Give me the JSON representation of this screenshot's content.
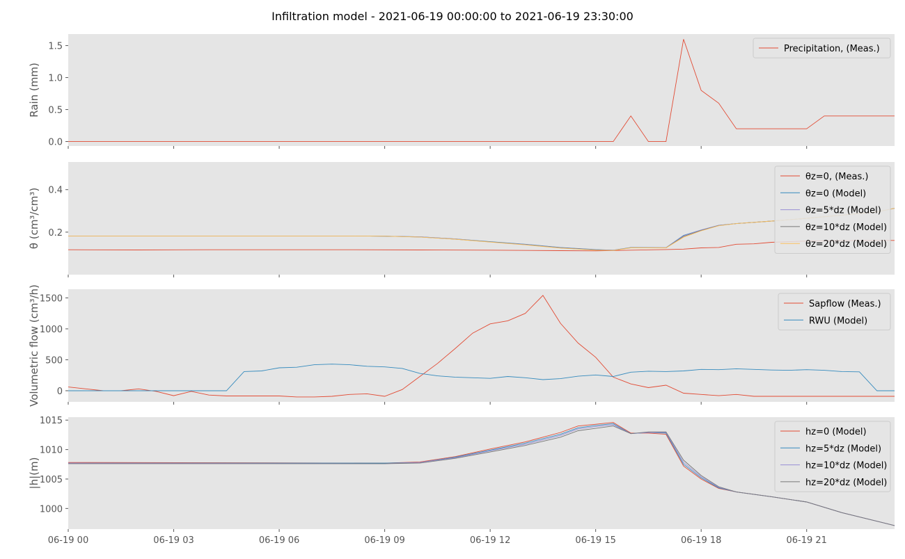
{
  "figure": {
    "title": "Infiltration model - 2021-06-19 00:00:00 to 2021-06-19 23:30:00",
    "x_tick_labels": [
      "06-19 00",
      "06-19 03",
      "06-19 06",
      "06-19 09",
      "06-19 12",
      "06-19 15",
      "06-19 18",
      "06-19 21"
    ]
  },
  "chart_data": [
    {
      "type": "line",
      "ylabel": "Rain (mm)",
      "ylim": [
        -0.07,
        1.68
      ],
      "yticks": [
        0.0,
        0.5,
        1.0,
        1.5
      ],
      "ytick_labels": [
        "0.0",
        "0.5",
        "1.0",
        "1.5"
      ],
      "grid": false,
      "legend_position": "top-right",
      "series": [
        {
          "name": "Precipitation, (Meas.)",
          "color": "#e24a33",
          "x_hours": [
            0,
            15.5,
            16,
            16.5,
            17,
            17.5,
            18,
            18.5,
            19,
            19.5,
            20,
            20.5,
            21,
            21.5,
            22,
            22.5,
            23,
            23.5
          ],
          "values": [
            0,
            0,
            0.4,
            0,
            0,
            1.6,
            0.8,
            0.6,
            0.2,
            0.2,
            0.2,
            0.2,
            0.2,
            0.4,
            0.4,
            0.4,
            0.4,
            0.4
          ]
        }
      ]
    },
    {
      "type": "line",
      "ylabel": "θ (cm³/cm³)",
      "ylim": [
        0.0,
        0.53
      ],
      "yticks": [
        0.2,
        0.4
      ],
      "ytick_labels": [
        "0.2",
        "0.4"
      ],
      "grid": false,
      "legend_position": "top-right",
      "series": [
        {
          "name": "θz=0, (Meas.)",
          "color": "#e24a33",
          "x_hours": [
            0,
            2,
            4,
            6,
            8,
            10,
            12,
            14,
            15,
            16,
            17,
            17.5,
            18,
            18.5,
            19,
            19.5,
            20,
            21,
            22,
            23.5
          ],
          "values": [
            0.117,
            0.116,
            0.117,
            0.117,
            0.117,
            0.116,
            0.115,
            0.113,
            0.112,
            0.115,
            0.118,
            0.12,
            0.126,
            0.128,
            0.143,
            0.145,
            0.152,
            0.158,
            0.16,
            0.161
          ]
        },
        {
          "name": "θz=0 (Model)",
          "color": "#348abd",
          "x_hours": [
            0,
            2,
            4,
            6,
            8,
            9,
            10,
            11,
            12,
            13,
            14,
            15,
            15.5,
            16,
            17,
            17.5,
            18,
            18.5,
            19,
            20,
            21,
            22,
            23,
            23.5
          ],
          "values": [
            0.182,
            0.182,
            0.182,
            0.182,
            0.182,
            0.181,
            0.178,
            0.168,
            0.155,
            0.143,
            0.128,
            0.118,
            0.115,
            0.128,
            0.127,
            0.185,
            0.21,
            0.232,
            0.24,
            0.252,
            0.265,
            0.28,
            0.295,
            0.312
          ]
        },
        {
          "name": "θz=5*dz (Model)",
          "color": "#988ed5",
          "x_hours": [
            0,
            2,
            4,
            6,
            8,
            9,
            10,
            11,
            12,
            13,
            14,
            15,
            15.5,
            16,
            17,
            17.5,
            18,
            18.5,
            19,
            20,
            21,
            22,
            23,
            23.5
          ],
          "values": [
            0.182,
            0.182,
            0.182,
            0.182,
            0.182,
            0.181,
            0.178,
            0.168,
            0.154,
            0.142,
            0.127,
            0.117,
            0.115,
            0.127,
            0.127,
            0.183,
            0.21,
            0.232,
            0.24,
            0.252,
            0.265,
            0.28,
            0.295,
            0.312
          ]
        },
        {
          "name": "θz=10*dz (Model)",
          "color": "#777777",
          "x_hours": [
            0,
            2,
            4,
            6,
            8,
            9,
            10,
            11,
            12,
            13,
            14,
            15,
            15.5,
            16,
            17,
            17.5,
            18,
            18.5,
            19,
            20,
            21,
            22,
            23,
            23.5
          ],
          "values": [
            0.182,
            0.182,
            0.182,
            0.182,
            0.182,
            0.181,
            0.177,
            0.167,
            0.154,
            0.141,
            0.126,
            0.116,
            0.114,
            0.127,
            0.126,
            0.18,
            0.208,
            0.231,
            0.24,
            0.252,
            0.265,
            0.28,
            0.295,
            0.312
          ]
        },
        {
          "name": "θz=20*dz (Model)",
          "color": "#fbc15e",
          "x_hours": [
            0,
            2,
            4,
            6,
            8,
            9,
            10,
            11,
            12,
            13,
            14,
            15,
            15.5,
            16,
            17,
            17.5,
            18,
            18.5,
            19,
            20,
            21,
            22,
            23,
            23.5
          ],
          "values": [
            0.182,
            0.182,
            0.182,
            0.182,
            0.182,
            0.181,
            0.177,
            0.167,
            0.153,
            0.14,
            0.125,
            0.115,
            0.114,
            0.126,
            0.126,
            0.176,
            0.206,
            0.23,
            0.24,
            0.252,
            0.265,
            0.28,
            0.295,
            0.312
          ]
        }
      ]
    },
    {
      "type": "line",
      "ylabel": "Volumetric flow (cm³/h)",
      "ylim": [
        -180,
        1640
      ],
      "yticks": [
        0,
        500,
        1000,
        1500
      ],
      "ytick_labels": [
        "0",
        "500",
        "1000",
        "1500"
      ],
      "grid": false,
      "legend_position": "top-right",
      "series": [
        {
          "name": "Sapflow (Meas.)",
          "color": "#e24a33",
          "x_hours": [
            0,
            0.5,
            1,
            1.5,
            2,
            2.5,
            3,
            3.5,
            4,
            4.5,
            5,
            5.5,
            6,
            6.5,
            7,
            7.5,
            8,
            8.5,
            9,
            9.5,
            10,
            10.5,
            11,
            11.5,
            12,
            12.5,
            13,
            13.5,
            14,
            14.5,
            15,
            15.5,
            16,
            16.5,
            17,
            17.5,
            18,
            18.5,
            19,
            19.5,
            20,
            20.5,
            21,
            21.5,
            22,
            22.5,
            23,
            23.5
          ],
          "values": [
            60,
            30,
            0,
            0,
            30,
            -10,
            -80,
            -10,
            -70,
            -85,
            -85,
            -85,
            -85,
            -100,
            -100,
            -90,
            -60,
            -50,
            -90,
            20,
            230,
            440,
            680,
            930,
            1080,
            1130,
            1250,
            1540,
            1090,
            770,
            540,
            220,
            110,
            50,
            90,
            -40,
            -60,
            -80,
            -60,
            -90,
            -90,
            -90,
            -90,
            -90,
            -90,
            -90,
            -90,
            -90
          ]
        },
        {
          "name": "RWU (Model)",
          "color": "#348abd",
          "x_hours": [
            0,
            0.5,
            1,
            1.5,
            2,
            2.5,
            3,
            3.5,
            4,
            4.5,
            5,
            5.5,
            6,
            6.5,
            7,
            7.5,
            8,
            8.5,
            9,
            9.5,
            10,
            10.5,
            11,
            11.5,
            12,
            12.5,
            13,
            13.5,
            14,
            14.5,
            15,
            15.5,
            16,
            16.5,
            17,
            17.5,
            18,
            18.5,
            19,
            19.5,
            20,
            20.5,
            21,
            21.5,
            22,
            22.5,
            23,
            23.5
          ],
          "values": [
            0,
            0,
            0,
            0,
            0,
            0,
            0,
            0,
            0,
            0,
            310,
            320,
            370,
            380,
            420,
            430,
            420,
            395,
            385,
            360,
            280,
            240,
            220,
            210,
            200,
            230,
            210,
            180,
            195,
            235,
            255,
            230,
            300,
            315,
            310,
            320,
            345,
            340,
            355,
            345,
            335,
            330,
            340,
            330,
            310,
            305,
            0,
            0
          ]
        }
      ]
    },
    {
      "type": "line",
      "ylabel": "|h|(m)",
      "ylim": [
        996.5,
        1015.5
      ],
      "yticks": [
        1000,
        1005,
        1010,
        1015
      ],
      "ytick_labels": [
        "1000",
        "1005",
        "1010",
        "1015"
      ],
      "grid": false,
      "legend_position": "top-right",
      "series": [
        {
          "name": "hz=0 (Model)",
          "color": "#e24a33",
          "x_hours": [
            0,
            9,
            10,
            11,
            12,
            13,
            14,
            14.5,
            15,
            15.5,
            16,
            16.5,
            17,
            17.5,
            18,
            18.5,
            19,
            20,
            21,
            22,
            23.5
          ],
          "values": [
            1007.8,
            1007.7,
            1007.9,
            1008.8,
            1010.1,
            1011.3,
            1012.9,
            1014.0,
            1014.3,
            1014.6,
            1012.8,
            1012.8,
            1012.6,
            1007.2,
            1005.0,
            1003.4,
            1002.8,
            1002.0,
            1001.1,
            999.3,
            997.1
          ]
        },
        {
          "name": "hz=5*dz (Model)",
          "color": "#348abd",
          "x_hours": [
            0,
            9,
            10,
            11,
            12,
            13,
            14,
            14.5,
            15,
            15.5,
            16,
            16.5,
            17,
            17.5,
            18,
            18.5,
            19,
            20,
            21,
            22,
            23.5
          ],
          "values": [
            1007.7,
            1007.7,
            1007.8,
            1008.7,
            1009.9,
            1011.1,
            1012.6,
            1013.7,
            1014.1,
            1014.4,
            1012.7,
            1012.9,
            1012.8,
            1007.5,
            1005.2,
            1003.5,
            1002.8,
            1002.0,
            1001.1,
            999.3,
            997.1
          ]
        },
        {
          "name": "hz=10*dz (Model)",
          "color": "#988ed5",
          "x_hours": [
            0,
            9,
            10,
            11,
            12,
            13,
            14,
            14.5,
            15,
            15.5,
            16,
            16.5,
            17,
            17.5,
            18,
            18.5,
            19,
            20,
            21,
            22,
            23.5
          ],
          "values": [
            1007.7,
            1007.6,
            1007.8,
            1008.6,
            1009.8,
            1010.9,
            1012.4,
            1013.5,
            1013.9,
            1014.2,
            1012.7,
            1012.9,
            1012.9,
            1007.8,
            1005.4,
            1003.6,
            1002.8,
            1002.0,
            1001.1,
            999.3,
            997.1
          ]
        },
        {
          "name": "hz=20*dz (Model)",
          "color": "#777777",
          "x_hours": [
            0,
            9,
            10,
            11,
            12,
            13,
            14,
            14.5,
            15,
            15.5,
            16,
            16.5,
            17,
            17.5,
            18,
            18.5,
            19,
            20,
            21,
            22,
            23.5
          ],
          "values": [
            1007.6,
            1007.6,
            1007.7,
            1008.5,
            1009.6,
            1010.7,
            1012.1,
            1013.2,
            1013.6,
            1014.0,
            1012.7,
            1013.0,
            1013.0,
            1008.2,
            1005.6,
            1003.7,
            1002.8,
            1002.0,
            1001.1,
            999.3,
            997.1
          ]
        }
      ]
    }
  ]
}
